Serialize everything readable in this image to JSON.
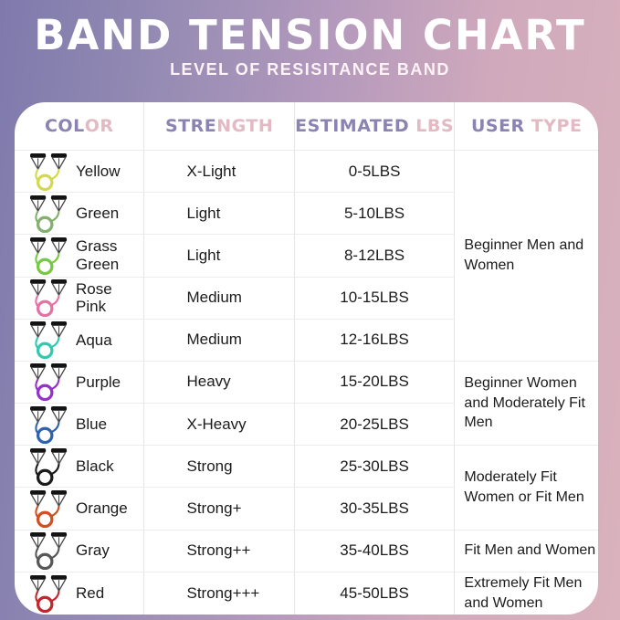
{
  "header": {
    "title": "BAND TENSION CHART",
    "subtitle": "LEVEL OF RESISITANCE BAND"
  },
  "columns": [
    {
      "part1": "COL",
      "part2": "OR"
    },
    {
      "part1": "STRE",
      "part2": "NGTH"
    },
    {
      "part1": "ESTIMATED ",
      "part2": "LBS"
    },
    {
      "part1": "USER ",
      "part2": "TYPE"
    }
  ],
  "rows": [
    {
      "color_name": "Yellow",
      "band_hex": "#d3d94f",
      "strength": "X-Light",
      "lbs": "0-5LBS"
    },
    {
      "color_name": "Green",
      "band_hex": "#83b06c",
      "strength": "Light",
      "lbs": "5-10LBS"
    },
    {
      "color_name": "Grass Green",
      "band_hex": "#77c843",
      "strength": "Light",
      "lbs": "8-12LBS"
    },
    {
      "color_name": "Rose Pink",
      "band_hex": "#e473a4",
      "strength": "Medium",
      "lbs": "10-15LBS"
    },
    {
      "color_name": "Aqua",
      "band_hex": "#31c9af",
      "strength": "Medium",
      "lbs": "12-16LBS"
    },
    {
      "color_name": "Purple",
      "band_hex": "#9232c8",
      "strength": "Heavy",
      "lbs": "15-20LBS"
    },
    {
      "color_name": "Blue",
      "band_hex": "#2d62af",
      "strength": "X-Heavy",
      "lbs": "20-25LBS"
    },
    {
      "color_name": "Black",
      "band_hex": "#1b1b1b",
      "strength": "Strong",
      "lbs": "25-30LBS"
    },
    {
      "color_name": "Orange",
      "band_hex": "#d14f20",
      "strength": "Strong+",
      "lbs": "30-35LBS"
    },
    {
      "color_name": "Gray",
      "band_hex": "#575757",
      "strength": "Strong++",
      "lbs": "35-40LBS"
    },
    {
      "color_name": "Red",
      "band_hex": "#c1272d",
      "strength": "Strong+++",
      "lbs": "45-50LBS"
    }
  ],
  "user_type_groups": [
    {
      "label": "Beginner Men and Women",
      "span": 5
    },
    {
      "label": "Beginner Women and Moderately Fit Men",
      "span": 2
    },
    {
      "label": "Moderately Fit Women or Fit Men",
      "span": 2
    },
    {
      "label": "Fit Men and Women",
      "span": 1
    },
    {
      "label": "Extremely Fit Men and Women",
      "span": 1
    }
  ],
  "colors": {
    "header_purple": "#8b83b1",
    "header_pink": "#e3bac4",
    "background_left": "#7e7aac",
    "background_right": "#d9b2bd",
    "card_background": "#ffffff",
    "grid_line": "#e8e8ea",
    "body_text": "#1b1b1b"
  },
  "chart_data": {
    "type": "table",
    "title": "BAND TENSION CHART",
    "subtitle": "LEVEL OF RESISITANCE BAND",
    "columns": [
      "COLOR",
      "STRENGTH",
      "ESTIMATED LBS",
      "USER TYPE"
    ],
    "rows": [
      [
        "Yellow",
        "X-Light",
        "0-5LBS",
        "Beginner Men and Women"
      ],
      [
        "Green",
        "Light",
        "5-10LBS",
        "Beginner Men and Women"
      ],
      [
        "Grass Green",
        "Light",
        "8-12LBS",
        "Beginner Men and Women"
      ],
      [
        "Rose Pink",
        "Medium",
        "10-15LBS",
        "Beginner Men and Women"
      ],
      [
        "Aqua",
        "Medium",
        "12-16LBS",
        "Beginner Men and Women"
      ],
      [
        "Purple",
        "Heavy",
        "15-20LBS",
        "Beginner Women and Moderately Fit Men"
      ],
      [
        "Blue",
        "X-Heavy",
        "20-25LBS",
        "Beginner Women and Moderately Fit Men"
      ],
      [
        "Black",
        "Strong",
        "25-30LBS",
        "Moderately Fit Women or Fit Men"
      ],
      [
        "Orange",
        "Strong+",
        "30-35LBS",
        "Moderately Fit Women or Fit Men"
      ],
      [
        "Gray",
        "Strong++",
        "35-40LBS",
        "Fit Men and Women"
      ],
      [
        "Red",
        "Strong+++",
        "45-50LBS",
        "Extremely Fit Men and Women"
      ]
    ],
    "merged_user_type_spans": [
      5,
      2,
      2,
      1,
      1
    ]
  }
}
